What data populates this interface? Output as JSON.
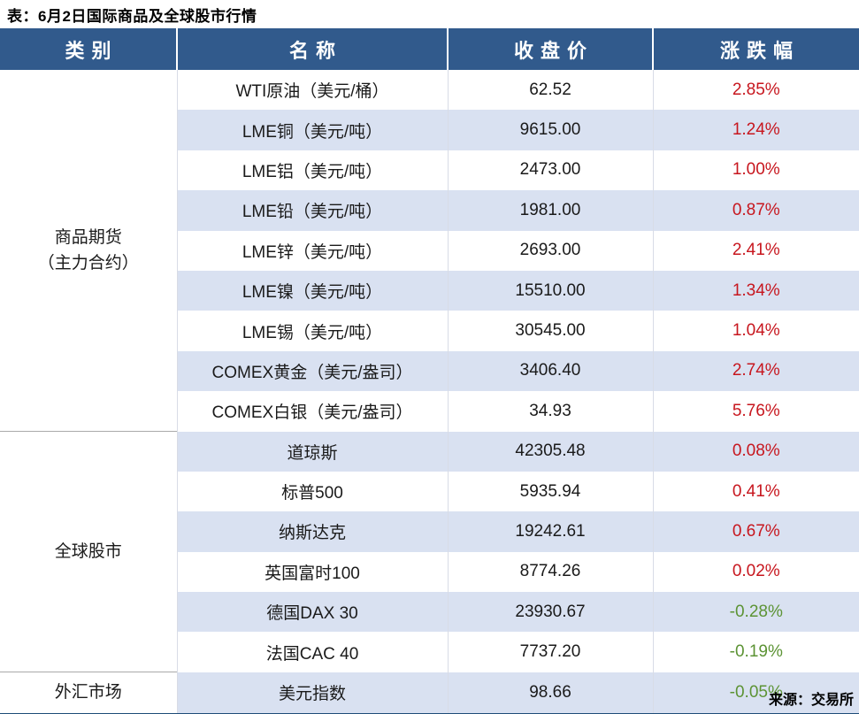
{
  "title": "表：6月2日国际商品及全球股市行情",
  "source": "来源：交易所",
  "colors": {
    "header_bg": "#315A8C",
    "band": "#D9E1F1",
    "positive": "#C7161E",
    "negative": "#5C9334",
    "bottom_border": "#1E4C78",
    "category_separator": "#A9A9A9"
  },
  "table": {
    "columns": [
      "类别",
      "名称",
      "收盘价",
      "涨跌幅"
    ],
    "groups": [
      {
        "category": "商品期货（主力合约）",
        "category_lines": [
          "商品期货",
          "（主力合约）"
        ],
        "rows": [
          {
            "name": "WTI原油（美元/桶）",
            "close": "62.52",
            "change": "2.85%"
          },
          {
            "name": "LME铜（美元/吨）",
            "close": "9615.00",
            "change": "1.24%"
          },
          {
            "name": "LME铝（美元/吨）",
            "close": "2473.00",
            "change": "1.00%"
          },
          {
            "name": "LME铅（美元/吨）",
            "close": "1981.00",
            "change": "0.87%"
          },
          {
            "name": "LME锌（美元/吨）",
            "close": "2693.00",
            "change": "2.41%"
          },
          {
            "name": "LME镍（美元/吨）",
            "close": "15510.00",
            "change": "1.34%"
          },
          {
            "name": "LME锡（美元/吨）",
            "close": "30545.00",
            "change": "1.04%"
          },
          {
            "name": "COMEX黄金（美元/盎司）",
            "close": "3406.40",
            "change": "2.74%"
          },
          {
            "name": "COMEX白银（美元/盎司）",
            "close": "34.93",
            "change": "5.76%"
          }
        ]
      },
      {
        "category": "全球股市",
        "category_lines": [
          "全球股市"
        ],
        "rows": [
          {
            "name": "道琼斯",
            "close": "42305.48",
            "change": "0.08%"
          },
          {
            "name": "标普500",
            "close": "5935.94",
            "change": "0.41%"
          },
          {
            "name": "纳斯达克",
            "close": "19242.61",
            "change": "0.67%"
          },
          {
            "name": "英国富时100",
            "close": "8774.26",
            "change": "0.02%"
          },
          {
            "name": "德国DAX 30",
            "close": "23930.67",
            "change": "-0.28%"
          },
          {
            "name": "法国CAC 40",
            "close": "7737.20",
            "change": "-0.19%"
          }
        ]
      },
      {
        "category": "外汇市场",
        "category_lines": [
          "外汇市场"
        ],
        "rows": [
          {
            "name": "美元指数",
            "close": "98.66",
            "change": "-0.05%"
          }
        ]
      }
    ]
  },
  "chart_data": {
    "type": "table",
    "title": "表：6月2日国际商品及全球股市行情",
    "columns": [
      "类别",
      "名称",
      "收盘价",
      "涨跌幅"
    ],
    "rows": [
      [
        "商品期货（主力合约）",
        "WTI原油（美元/桶）",
        62.52,
        "2.85%"
      ],
      [
        "商品期货（主力合约）",
        "LME铜（美元/吨）",
        9615.0,
        "1.24%"
      ],
      [
        "商品期货（主力合约）",
        "LME铝（美元/吨）",
        2473.0,
        "1.00%"
      ],
      [
        "商品期货（主力合约）",
        "LME铅（美元/吨）",
        1981.0,
        "0.87%"
      ],
      [
        "商品期货（主力合约）",
        "LME锌（美元/吨）",
        2693.0,
        "2.41%"
      ],
      [
        "商品期货（主力合约）",
        "LME镍（美元/吨）",
        15510.0,
        "1.34%"
      ],
      [
        "商品期货（主力合约）",
        "LME锡（美元/吨）",
        30545.0,
        "1.04%"
      ],
      [
        "商品期货（主力合约）",
        "COMEX黄金（美元/盎司）",
        3406.4,
        "2.74%"
      ],
      [
        "商品期货（主力合约）",
        "COMEX白银（美元/盎司）",
        34.93,
        "5.76%"
      ],
      [
        "全球股市",
        "道琼斯",
        42305.48,
        "0.08%"
      ],
      [
        "全球股市",
        "标普500",
        5935.94,
        "0.41%"
      ],
      [
        "全球股市",
        "纳斯达克",
        19242.61,
        "0.67%"
      ],
      [
        "全球股市",
        "英国富时100",
        8774.26,
        "0.02%"
      ],
      [
        "全球股市",
        "德国DAX 30",
        23930.67,
        "-0.28%"
      ],
      [
        "全球股市",
        "法国CAC 40",
        7737.2,
        "-0.19%"
      ],
      [
        "外汇市场",
        "美元指数",
        98.66,
        "-0.05%"
      ]
    ],
    "notes": "positive changes shown in red, negative in green (Chinese convention)",
    "source": "来源：交易所"
  }
}
